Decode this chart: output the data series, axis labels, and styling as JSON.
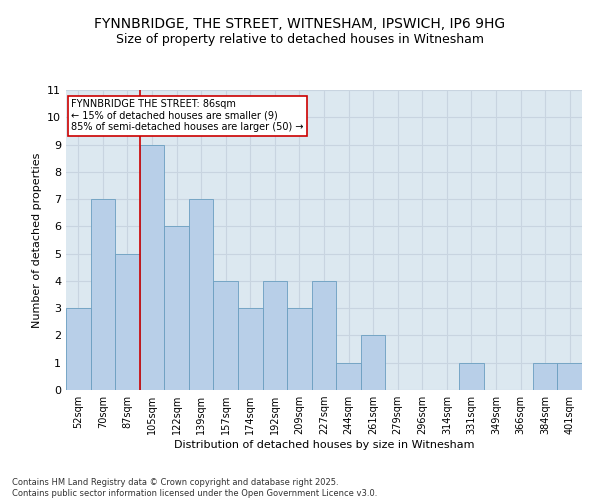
{
  "title_line1": "FYNNBRIDGE, THE STREET, WITNESHAM, IPSWICH, IP6 9HG",
  "title_line2": "Size of property relative to detached houses in Witnesham",
  "xlabel": "Distribution of detached houses by size in Witnesham",
  "ylabel": "Number of detached properties",
  "categories": [
    "52sqm",
    "70sqm",
    "87sqm",
    "105sqm",
    "122sqm",
    "139sqm",
    "157sqm",
    "174sqm",
    "192sqm",
    "209sqm",
    "227sqm",
    "244sqm",
    "261sqm",
    "279sqm",
    "296sqm",
    "314sqm",
    "331sqm",
    "349sqm",
    "366sqm",
    "384sqm",
    "401sqm"
  ],
  "values": [
    3,
    7,
    5,
    9,
    6,
    7,
    4,
    3,
    4,
    3,
    4,
    1,
    2,
    0,
    0,
    0,
    1,
    0,
    0,
    1,
    1
  ],
  "bar_color": "#b8cfe8",
  "bar_edge_color": "#6a9ec0",
  "annotation_box_text": "FYNNBRIDGE THE STREET: 86sqm\n← 15% of detached houses are smaller (9)\n85% of semi-detached houses are larger (50) →",
  "annotation_box_color": "#ffffff",
  "annotation_box_edge_color": "#cc0000",
  "vline_x": 2.5,
  "vline_color": "#cc0000",
  "ylim": [
    0,
    11
  ],
  "yticks": [
    0,
    1,
    2,
    3,
    4,
    5,
    6,
    7,
    8,
    9,
    10,
    11
  ],
  "grid_color": "#c8d4e0",
  "bg_color": "#dce8f0",
  "footnote": "Contains HM Land Registry data © Crown copyright and database right 2025.\nContains public sector information licensed under the Open Government Licence v3.0.",
  "title_fontsize": 10,
  "subtitle_fontsize": 9,
  "tick_fontsize": 7,
  "label_fontsize": 8,
  "annot_fontsize": 7
}
